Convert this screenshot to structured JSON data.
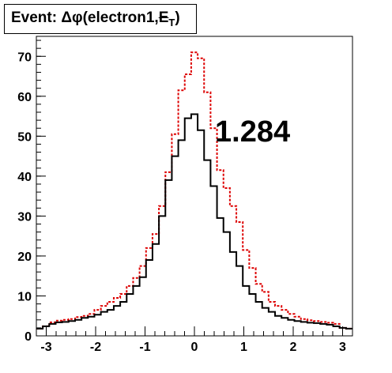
{
  "chart_data": {
    "type": "histogram",
    "title": {
      "prefix": "Event: ",
      "symbol": "Δφ",
      "body": "(electron1,",
      "met": "E",
      "sub": "T",
      "close": ")"
    },
    "xlabel": "",
    "ylabel": "",
    "xlim": [
      -3.2,
      3.2
    ],
    "ylim": [
      0,
      75
    ],
    "x_ticks": [
      "-3",
      "-2",
      "-1",
      "0",
      "1",
      "2",
      "3"
    ],
    "x_tick_values": [
      -3,
      -2,
      -1,
      0,
      1,
      2,
      3
    ],
    "y_ticks": [
      "0",
      "10",
      "20",
      "30",
      "40",
      "50",
      "60",
      "70"
    ],
    "y_tick_values": [
      0,
      10,
      20,
      30,
      40,
      50,
      60,
      70
    ],
    "annotation": "1.284",
    "bin_edges_range": [
      -3.2,
      3.2
    ],
    "series": [
      {
        "style": "solid",
        "color": "#000000",
        "values": [
          1.8,
          2.4,
          3.0,
          3.4,
          3.5,
          3.7,
          4.0,
          4.5,
          4.8,
          5.3,
          6.0,
          6.5,
          7.5,
          8.5,
          10.5,
          12.5,
          14.7,
          19.0,
          23.0,
          30.0,
          39.0,
          45.0,
          49.0,
          54.5,
          55.5,
          51.5,
          44.0,
          37.5,
          29.5,
          26.0,
          21.0,
          17.5,
          12.5,
          10.5,
          8.5,
          7.0,
          6.0,
          5.0,
          4.5,
          4.0,
          3.7,
          3.5,
          3.3,
          3.2,
          3.0,
          2.8,
          2.4,
          2.0,
          1.8
        ]
      },
      {
        "style": "dashed",
        "color": "#dd0000",
        "values": [
          1.8,
          2.4,
          3.4,
          3.8,
          4.0,
          4.2,
          4.7,
          5.0,
          5.5,
          6.5,
          7.5,
          8.5,
          9.5,
          10.5,
          12.5,
          14.5,
          17.5,
          22.0,
          25.5,
          32.5,
          41.0,
          50.5,
          61.5,
          65.5,
          71.0,
          69.5,
          61.0,
          52.0,
          41.5,
          37.0,
          32.5,
          28.5,
          21.5,
          17.0,
          13.0,
          11.0,
          8.5,
          7.5,
          6.5,
          5.5,
          4.8,
          4.2,
          3.9,
          3.7,
          3.5,
          3.3,
          3.0,
          2.0,
          1.8
        ]
      }
    ]
  }
}
